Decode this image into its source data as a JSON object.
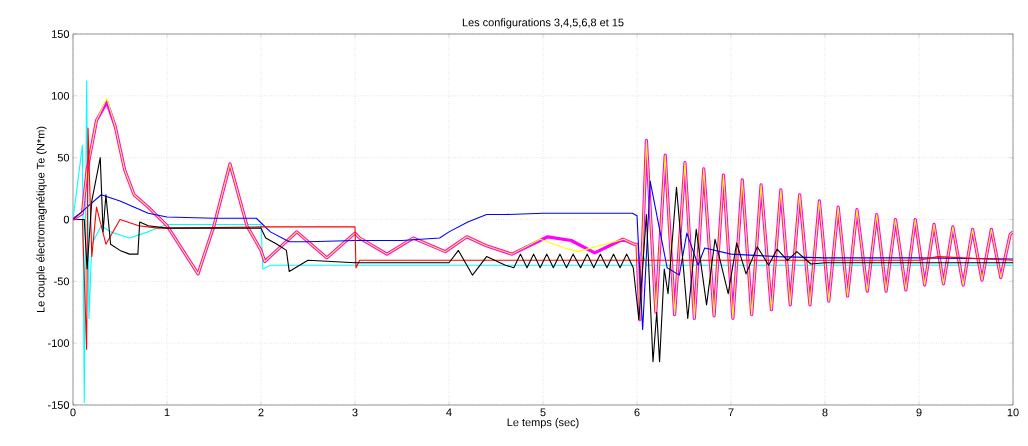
{
  "chart_data": {
    "type": "line",
    "title": "Les configurations 3,4,5,6,8 et 15",
    "xlabel": "Le temps (sec)",
    "ylabel": "Le couple électromagnétique Te (N*m)",
    "xlim": [
      0,
      10
    ],
    "ylim": [
      -150,
      150
    ],
    "xticks": [
      0,
      1,
      2,
      3,
      4,
      5,
      6,
      7,
      8,
      9,
      10
    ],
    "yticks": [
      -150,
      -100,
      -50,
      0,
      50,
      100,
      150
    ],
    "grid": true,
    "marker": "none",
    "line_style": "solid",
    "series": [
      {
        "color": "#00ffff",
        "x": [
          0,
          0.1,
          0.12,
          0.145,
          0.17,
          0.2,
          0.3,
          0.4,
          0.6,
          0.8,
          1.0,
          2.0,
          2.02,
          2.1,
          3.0,
          4.0,
          5.0,
          6.0,
          6.05,
          6.1,
          7.0,
          8.0,
          9.0,
          10.0
        ],
        "values": [
          0,
          60,
          -148,
          112,
          -80,
          -20,
          -5,
          -10,
          -15,
          -10,
          -4,
          -4,
          -40,
          -37,
          -37,
          -37,
          -37,
          -37,
          -25,
          -37,
          -37,
          -37,
          -37,
          -37
        ]
      },
      {
        "color": "#ff00ff",
        "x": [
          0,
          0.1,
          0.15,
          0.25,
          0.36,
          0.45,
          0.55,
          0.65,
          0.8,
          1.0,
          1.33,
          1.5,
          1.67,
          1.85,
          2.0,
          2.04,
          2.38,
          2.7,
          3.0,
          3.05,
          3.34,
          3.62,
          3.96,
          4.19,
          4.39,
          4.67,
          5.05,
          5.3,
          5.55,
          5.85,
          5.97,
          6.0,
          6.03,
          6.1,
          6.2,
          6.3,
          6.4,
          6.51,
          6.61,
          6.71,
          6.82,
          6.92,
          7.02,
          7.12,
          7.22,
          7.32,
          7.43,
          7.53,
          7.63,
          7.73,
          7.84,
          7.94,
          8.04,
          8.14,
          8.24,
          8.34,
          8.45,
          8.55,
          8.65,
          8.75,
          8.86,
          8.96,
          9.06,
          9.16,
          9.26,
          9.36,
          9.47,
          9.57,
          9.67,
          9.77,
          9.87,
          9.97,
          10.0
        ],
        "values": [
          0,
          5,
          40,
          80,
          95,
          75,
          40,
          20,
          10,
          -5,
          -44,
          -5,
          45,
          -5,
          -25,
          -34,
          -10,
          -31,
          -11,
          -15,
          -28,
          -15,
          -26,
          -14,
          -21,
          -28,
          -14,
          -17,
          -27,
          -16,
          -20,
          -20,
          -81,
          64,
          -75,
          52,
          -77,
          46,
          -80,
          41,
          -78,
          36,
          -80,
          32,
          -77,
          28,
          -73,
          24,
          -69,
          20,
          -69,
          15,
          -66,
          10,
          -62,
          8,
          -58,
          4,
          -58,
          0,
          -57,
          0,
          -53,
          -4,
          -52,
          -6,
          -53,
          -8,
          -49,
          -8,
          -47,
          -12,
          -10
        ]
      },
      {
        "color": "#ffff00",
        "x": [
          0,
          0.1,
          0.15,
          0.25,
          0.36,
          0.45,
          0.55,
          0.65,
          0.8,
          1.0,
          1.33,
          1.5,
          1.67,
          1.85,
          2.0,
          2.04,
          2.38,
          2.7,
          3.0,
          3.05,
          3.34,
          3.62,
          3.96,
          4.19,
          4.39,
          4.67,
          4.97,
          5.23,
          5.37,
          5.86,
          5.97,
          6.0,
          6.03,
          6.1,
          6.2,
          6.3,
          6.4,
          6.51,
          6.61,
          6.71,
          6.82,
          6.92,
          7.02,
          7.12,
          7.22,
          7.32,
          7.43,
          7.53,
          7.63,
          7.73,
          7.84,
          7.94,
          8.04,
          8.14,
          8.24,
          8.34,
          8.45,
          8.55,
          8.65,
          8.75,
          8.86,
          8.96,
          9.06,
          9.16,
          9.26,
          9.36,
          9.47,
          9.57,
          9.67,
          9.77,
          9.87,
          9.97,
          10.0
        ],
        "values": [
          0,
          5,
          40,
          80,
          98,
          75,
          40,
          20,
          10,
          -5,
          -44,
          -5,
          45,
          -5,
          -25,
          -34,
          -10,
          -31,
          -11,
          -15,
          -28,
          -15,
          -26,
          -14,
          -21,
          -28,
          -16,
          -23,
          -26,
          -16,
          -20,
          -20,
          -81,
          64,
          -75,
          52,
          -77,
          46,
          -80,
          41,
          -78,
          36,
          -80,
          32,
          -77,
          28,
          -73,
          24,
          -69,
          20,
          -69,
          15,
          -66,
          10,
          -62,
          8,
          -58,
          4,
          -58,
          0,
          -57,
          0,
          -53,
          -4,
          -52,
          -6,
          -53,
          -8,
          -49,
          -8,
          -47,
          -12,
          -10
        ]
      },
      {
        "color": "#0000ff",
        "x": [
          0,
          0.15,
          0.3,
          0.5,
          0.8,
          1.0,
          1.5,
          1.95,
          2.1,
          2.3,
          2.5,
          3.0,
          3.5,
          3.9,
          4.0,
          4.2,
          4.4,
          4.6,
          5.0,
          5.5,
          5.95,
          6.0,
          6.06,
          6.14,
          6.32,
          6.45,
          6.53,
          6.65,
          6.72,
          7.0,
          7.5,
          8.0,
          9.0,
          10.0
        ],
        "values": [
          0,
          10,
          20,
          15,
          5,
          2,
          1,
          1,
          -10,
          -18,
          -18,
          -17,
          -17,
          -15,
          -10,
          -2,
          4,
          4,
          5,
          5,
          5,
          3,
          -89,
          31,
          -39,
          -45,
          -11,
          -37,
          -23,
          -28,
          -30,
          -31,
          -31,
          -32
        ]
      },
      {
        "color": "#ff0000",
        "x": [
          0,
          0.1,
          0.145,
          0.16,
          0.2,
          0.25,
          0.35,
          0.5,
          0.7,
          0.9,
          1.0,
          2.0,
          3.0,
          3.01,
          3.05,
          4.0,
          5.0,
          6.0,
          7.0,
          8.0,
          9.0,
          9.2,
          10.0
        ],
        "values": [
          0,
          0,
          -105,
          74,
          -30,
          10,
          -20,
          0,
          -5,
          -7,
          -7,
          -6,
          -6,
          -39,
          -33,
          -33,
          -33,
          -33,
          -33,
          -33,
          -33,
          -30,
          -33
        ]
      },
      {
        "color": "#000000",
        "x": [
          0.05,
          0.12,
          0.15,
          0.2,
          0.29,
          0.32,
          0.35,
          0.4,
          0.5,
          0.6,
          0.69,
          0.71,
          0.8,
          1.0,
          2.0,
          2.05,
          2.17,
          2.27,
          2.3,
          2.5,
          3.0,
          4.0,
          4.1,
          4.25,
          4.4,
          4.6,
          4.69,
          4.76,
          4.83,
          4.9,
          4.97,
          5.04,
          5.11,
          5.18,
          5.25,
          5.32,
          5.4,
          5.47,
          5.54,
          5.61,
          5.68,
          5.75,
          5.82,
          5.89,
          5.96,
          6.02,
          6.1,
          6.17,
          6.21,
          6.24,
          6.29,
          6.33,
          6.42,
          6.54,
          6.63,
          6.74,
          6.83,
          6.97,
          7.06,
          7.16,
          7.28,
          7.4,
          7.49,
          7.6,
          7.7,
          7.85,
          8.0,
          9.0,
          10.0
        ],
        "values": [
          0,
          0,
          -40,
          15,
          50,
          -10,
          20,
          -20,
          -25,
          -28,
          -28,
          -2,
          -5,
          -7,
          -7,
          -15,
          -20,
          -25,
          -42,
          -33,
          -35,
          -35,
          -25,
          -45,
          -30,
          -37,
          -39,
          -28,
          -39,
          -28,
          -39,
          -28,
          -39,
          -28,
          -39,
          -28,
          -39,
          -28,
          -39,
          -28,
          -39,
          -28,
          -39,
          -28,
          -39,
          -81,
          4,
          -115,
          -75,
          -115,
          -40,
          -60,
          26,
          -80,
          -8,
          -69,
          -16,
          -60,
          -19,
          -44,
          -22,
          -37,
          -24,
          -33,
          -26,
          -36,
          -35,
          -35,
          -35
        ]
      }
    ]
  }
}
